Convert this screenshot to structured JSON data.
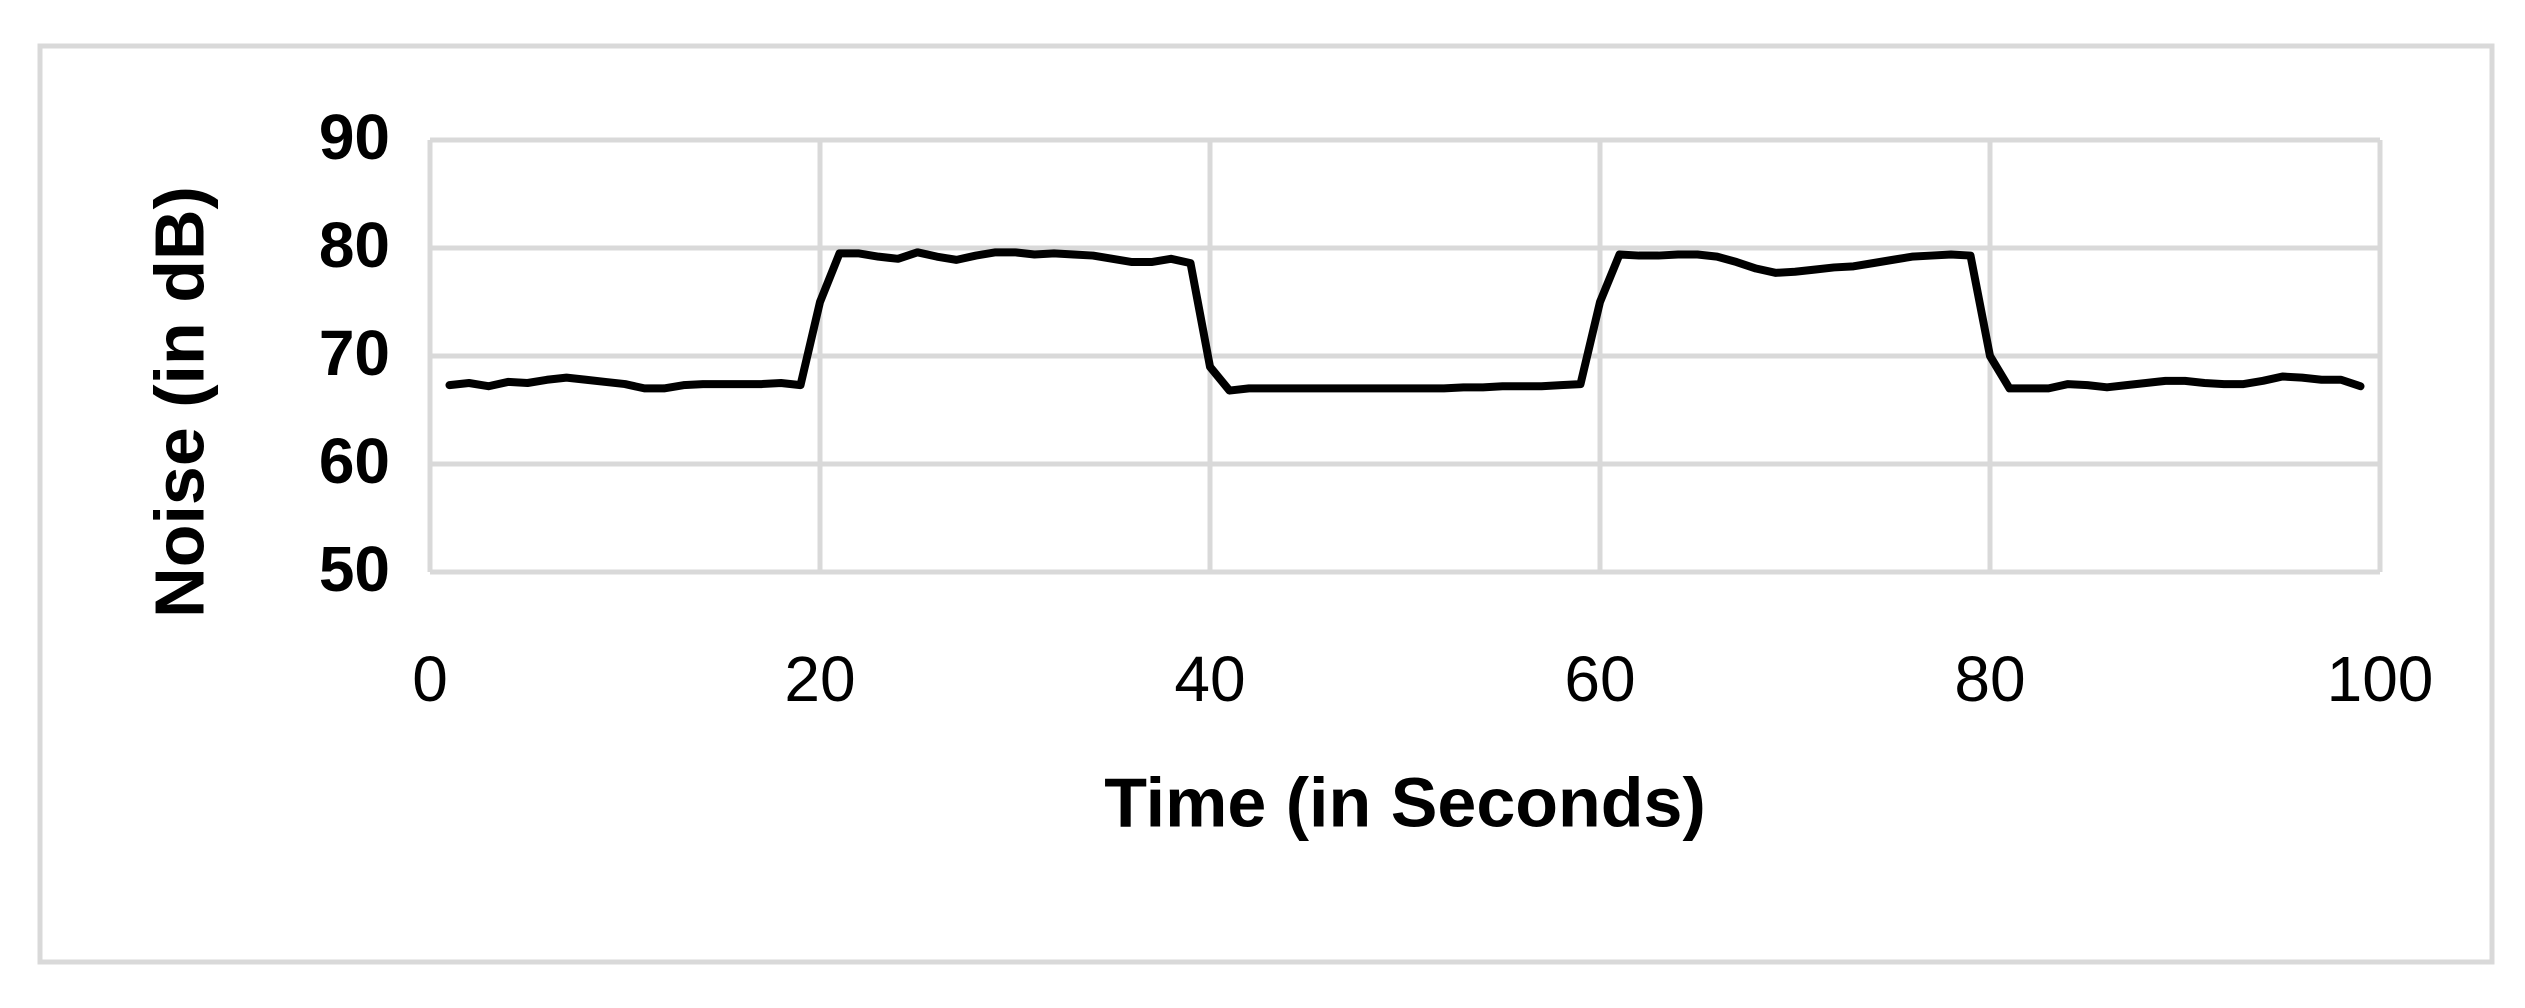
{
  "chart_data": {
    "type": "line",
    "x_label": "Time (in Seconds)",
    "y_label": "Noise (in dB)",
    "x": [
      1,
      2,
      3,
      4,
      5,
      6,
      7,
      8,
      9,
      10,
      11,
      12,
      13,
      14,
      15,
      16,
      17,
      18,
      19,
      20,
      21,
      22,
      23,
      24,
      25,
      26,
      27,
      28,
      29,
      30,
      31,
      32,
      33,
      34,
      35,
      36,
      37,
      38,
      39,
      40,
      41,
      42,
      43,
      44,
      45,
      46,
      47,
      48,
      49,
      50,
      51,
      52,
      53,
      54,
      55,
      56,
      57,
      58,
      59,
      60,
      61,
      62,
      63,
      64,
      65,
      66,
      67,
      68,
      69,
      70,
      71,
      72,
      73,
      74,
      75,
      76,
      77,
      78,
      79,
      80,
      81,
      82,
      83,
      84,
      85,
      86,
      87,
      88,
      89,
      90,
      91,
      92,
      93,
      94,
      95,
      96,
      97,
      98,
      99
    ],
    "values": [
      67.3,
      67.5,
      67.2,
      67.6,
      67.5,
      67.8,
      68.0,
      67.8,
      67.6,
      67.4,
      67.0,
      67.0,
      67.3,
      67.4,
      67.4,
      67.4,
      67.4,
      67.5,
      67.3,
      75.0,
      79.5,
      79.5,
      79.2,
      79.0,
      79.6,
      79.2,
      78.9,
      79.3,
      79.6,
      79.6,
      79.4,
      79.5,
      79.4,
      79.3,
      79.0,
      78.7,
      78.7,
      79.0,
      78.6,
      69.0,
      66.8,
      67.0,
      67.0,
      67.0,
      67.0,
      67.0,
      67.0,
      67.0,
      67.0,
      67.0,
      67.0,
      67.0,
      67.1,
      67.1,
      67.2,
      67.2,
      67.2,
      67.3,
      67.4,
      75.0,
      79.4,
      79.3,
      79.3,
      79.4,
      79.4,
      79.2,
      78.7,
      78.1,
      77.7,
      77.8,
      78.0,
      78.2,
      78.3,
      78.6,
      78.9,
      79.2,
      79.3,
      79.4,
      79.3,
      70.0,
      67.0,
      67.0,
      67.0,
      67.4,
      67.3,
      67.1,
      67.3,
      67.5,
      67.7,
      67.7,
      67.5,
      67.4,
      67.4,
      67.7,
      68.1,
      68.0,
      67.8,
      67.8,
      67.2
    ],
    "color": "#000000",
    "xlim": [
      0,
      100
    ],
    "xticks": [
      0,
      20,
      40,
      60,
      80,
      100
    ],
    "ylim": [
      50,
      90
    ],
    "yticks": [
      50,
      60,
      70,
      80,
      90
    ],
    "grid": true
  }
}
